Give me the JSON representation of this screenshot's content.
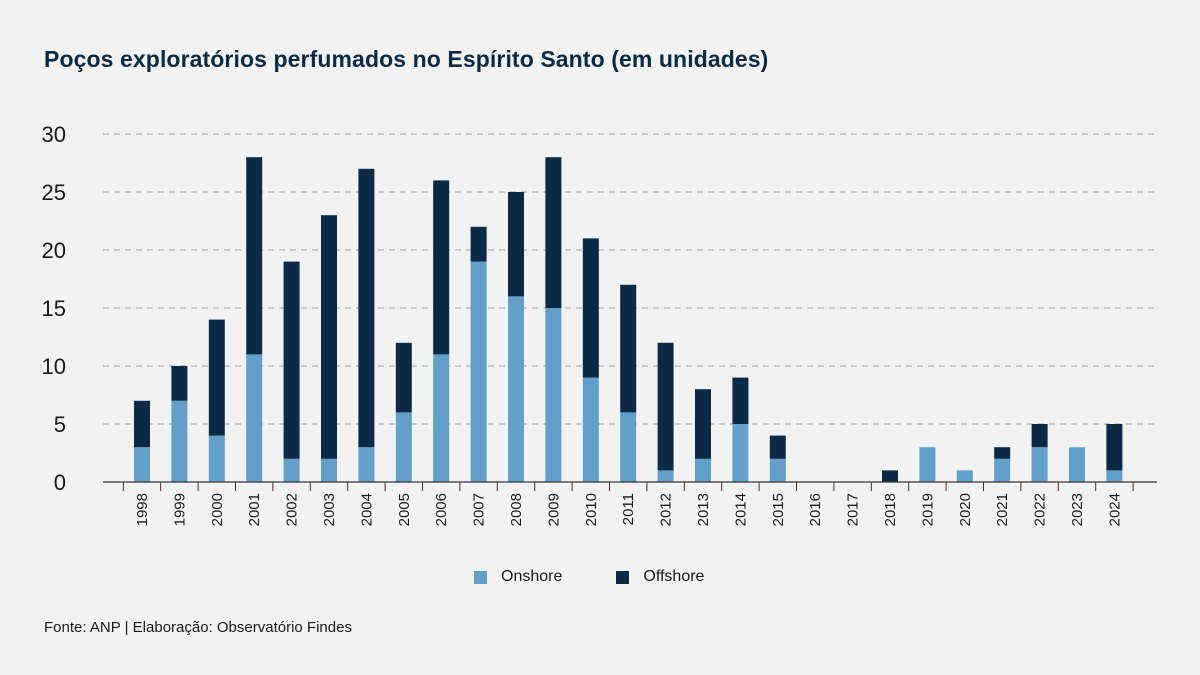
{
  "title": "Poços exploratórios perfumados no Espírito Santo (em unidades)",
  "source": "Fonte: ANP | Elaboração: Observatório Findes",
  "colors": {
    "onshore": "#62a0c9",
    "offshore": "#0b2a45",
    "grid": "#9a9a9a",
    "axis": "#333333"
  },
  "chart_data": {
    "type": "bar",
    "stacked": true,
    "title": "Poços exploratórios perfumados no Espírito Santo (em unidades)",
    "xlabel": "",
    "ylabel": "",
    "ylim": [
      0,
      30
    ],
    "yticks": [
      0,
      5,
      10,
      15,
      20,
      25,
      30
    ],
    "grid": true,
    "legend_position": "bottom-center",
    "categories": [
      "1998",
      "1999",
      "2000",
      "2001",
      "2002",
      "2003",
      "2004",
      "2005",
      "2006",
      "2007",
      "2008",
      "2009",
      "2010",
      "2011",
      "2012",
      "2013",
      "2014",
      "2015",
      "2016",
      "2017",
      "2018",
      "2019",
      "2020",
      "2021",
      "2022",
      "2023",
      "2024"
    ],
    "series": [
      {
        "name": "Onshore",
        "values": [
          3,
          7,
          4,
          11,
          2,
          2,
          3,
          6,
          11,
          19,
          16,
          15,
          9,
          6,
          1,
          2,
          5,
          2,
          0,
          0,
          0,
          3,
          1,
          2,
          3,
          3,
          1
        ]
      },
      {
        "name": "Offshore",
        "values": [
          4,
          3,
          10,
          17,
          17,
          21,
          24,
          6,
          15,
          3,
          9,
          13,
          12,
          11,
          11,
          6,
          4,
          2,
          0,
          0,
          1,
          0,
          0,
          1,
          2,
          0,
          4
        ]
      }
    ]
  }
}
